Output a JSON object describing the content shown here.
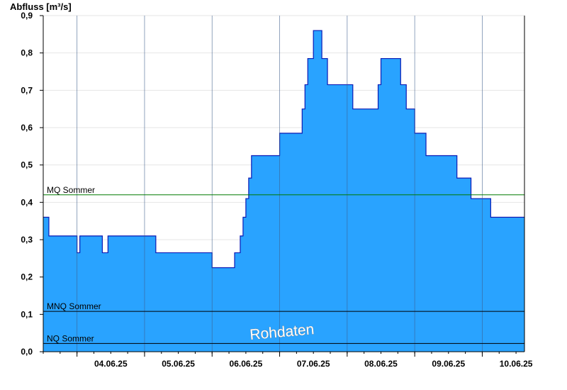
{
  "chart_data": {
    "type": "area",
    "title": "",
    "ylabel": "Abfluss [m³/s]",
    "xlabel": "",
    "ylim": [
      0,
      0.9
    ],
    "y_ticks": [
      "0,0",
      "0,1",
      "0,2",
      "0,3",
      "0,4",
      "0,5",
      "0,6",
      "0,7",
      "0,8",
      "0,9"
    ],
    "x_ticks": [
      "04.06.25",
      "05.06.25",
      "06.06.25",
      "07.06.25",
      "08.06.25",
      "09.06.25",
      "10.06.25"
    ],
    "x_range_days": [
      "03.06.25 12:00",
      "10.06.25 15:00"
    ],
    "grid": true,
    "series": [
      {
        "color": "#29a3ff",
        "steps": [
          {
            "t": "03.06.25 12:00",
            "v": 0.36
          },
          {
            "t": "03.06.25 14:00",
            "v": 0.31
          },
          {
            "t": "04.06.25 00:00",
            "v": 0.265
          },
          {
            "t": "04.06.25 01:00",
            "v": 0.31
          },
          {
            "t": "04.06.25 09:00",
            "v": 0.265
          },
          {
            "t": "04.06.25 11:00",
            "v": 0.31
          },
          {
            "t": "05.06.25 04:00",
            "v": 0.265
          },
          {
            "t": "06.06.25 00:00",
            "v": 0.225
          },
          {
            "t": "06.06.25 08:00",
            "v": 0.265
          },
          {
            "t": "06.06.25 10:00",
            "v": 0.31
          },
          {
            "t": "06.06.25 11:00",
            "v": 0.36
          },
          {
            "t": "06.06.25 12:00",
            "v": 0.41
          },
          {
            "t": "06.06.25 13:00",
            "v": 0.465
          },
          {
            "t": "06.06.25 14:00",
            "v": 0.525
          },
          {
            "t": "07.06.25 00:00",
            "v": 0.585
          },
          {
            "t": "07.06.25 08:00",
            "v": 0.65
          },
          {
            "t": "07.06.25 09:00",
            "v": 0.715
          },
          {
            "t": "07.06.25 10:00",
            "v": 0.785
          },
          {
            "t": "07.06.25 12:00",
            "v": 0.86
          },
          {
            "t": "07.06.25 15:00",
            "v": 0.785
          },
          {
            "t": "07.06.25 17:00",
            "v": 0.715
          },
          {
            "t": "08.06.25 02:00",
            "v": 0.65
          },
          {
            "t": "08.06.25 11:00",
            "v": 0.715
          },
          {
            "t": "08.06.25 12:00",
            "v": 0.785
          },
          {
            "t": "08.06.25 19:00",
            "v": 0.715
          },
          {
            "t": "08.06.25 21:00",
            "v": 0.65
          },
          {
            "t": "09.06.25 00:00",
            "v": 0.585
          },
          {
            "t": "09.06.25 04:00",
            "v": 0.525
          },
          {
            "t": "09.06.25 15:00",
            "v": 0.465
          },
          {
            "t": "09.06.25 20:00",
            "v": 0.41
          },
          {
            "t": "10.06.25 03:00",
            "v": 0.36
          },
          {
            "t": "10.06.25 15:00",
            "v": 0.36
          }
        ]
      }
    ],
    "reference_lines": [
      {
        "label": "MQ Sommer",
        "value": 0.42,
        "color": "#007a00"
      },
      {
        "label": "MNQ Sommer",
        "value": 0.108,
        "color": "#000000"
      },
      {
        "label": "NQ Sommer",
        "value": 0.022,
        "color": "#000000"
      }
    ],
    "annotation": "Rohdaten"
  }
}
